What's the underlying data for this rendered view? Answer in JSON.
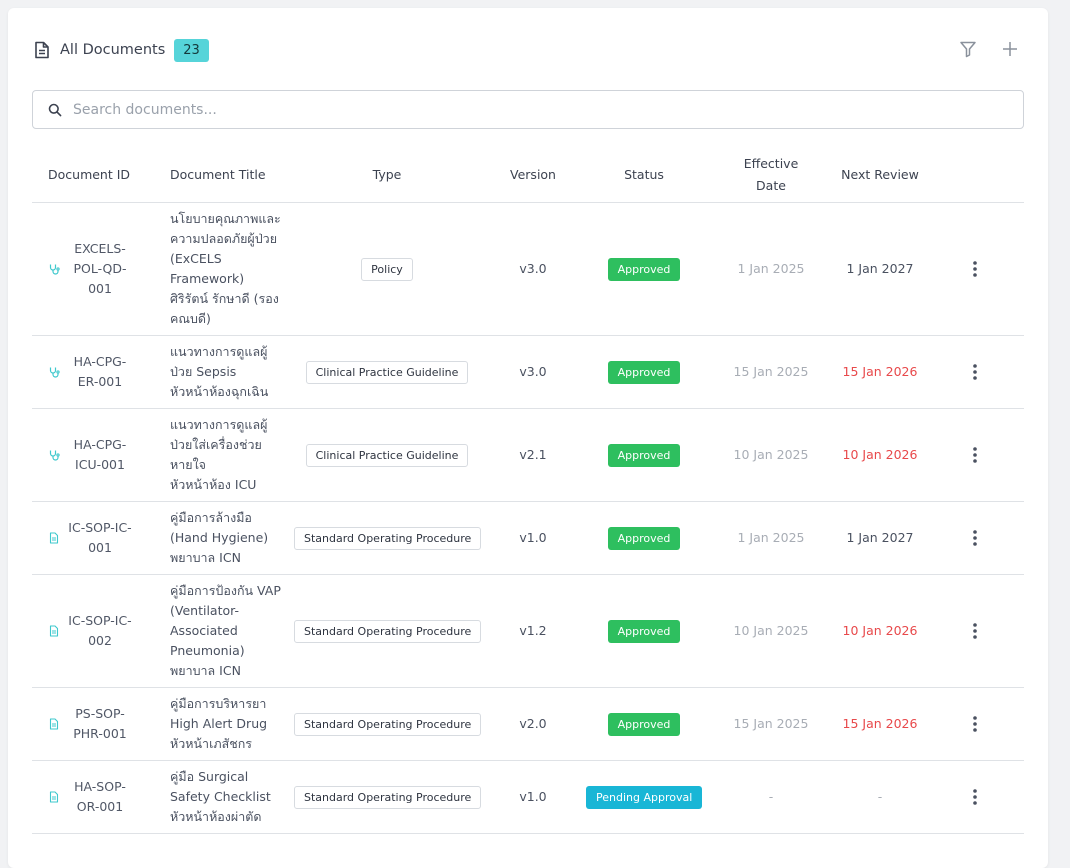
{
  "header": {
    "title": "All Documents",
    "count": "23"
  },
  "toolbar": {
    "filter_icon": "filter-icon",
    "add_icon": "plus-icon"
  },
  "search": {
    "placeholder": "Search documents...",
    "value": ""
  },
  "table": {
    "columns": [
      "Document ID",
      "Document Title",
      "Type",
      "Version",
      "Status",
      "Effective Date",
      "Next Review"
    ],
    "rows": [
      {
        "icon": "stethoscope-icon",
        "id": "EXCELS-POL-QD-001",
        "title": "นโยบายคุณภาพและความปลอดภัยผู้ป่วย (ExCELS Framework)",
        "owner": "ศิริรัตน์ รักษาดี (รองคณบดี)",
        "type": "Policy",
        "version": "v3.0",
        "status": "Approved",
        "effective": "1 Jan 2025",
        "review": "1 Jan 2027",
        "review_overdue": false
      },
      {
        "icon": "stethoscope-icon",
        "id": "HA-CPG-ER-001",
        "title": "แนวทางการดูแลผู้ป่วย Sepsis",
        "owner": "หัวหน้าห้องฉุกเฉิน",
        "type": "Clinical Practice Guideline",
        "version": "v3.0",
        "status": "Approved",
        "effective": "15 Jan 2025",
        "review": "15 Jan 2026",
        "review_overdue": true
      },
      {
        "icon": "stethoscope-icon",
        "id": "HA-CPG-ICU-001",
        "title": "แนวทางการดูแลผู้ป่วยใส่เครื่องช่วยหายใจ",
        "owner": "หัวหน้าห้อง ICU",
        "type": "Clinical Practice Guideline",
        "version": "v2.1",
        "status": "Approved",
        "effective": "10 Jan 2025",
        "review": "10 Jan 2026",
        "review_overdue": true
      },
      {
        "icon": "file-icon",
        "id": "IC-SOP-IC-001",
        "title": "คู่มือการล้างมือ (Hand Hygiene)",
        "owner": "พยาบาล ICN",
        "type": "Standard Operating Procedure",
        "version": "v1.0",
        "status": "Approved",
        "effective": "1 Jan 2025",
        "review": "1 Jan 2027",
        "review_overdue": false
      },
      {
        "icon": "file-icon",
        "id": "IC-SOP-IC-002",
        "title": "คู่มือการป้องกัน VAP (Ventilator-Associated Pneumonia)",
        "owner": "พยาบาล ICN",
        "type": "Standard Operating Procedure",
        "version": "v1.2",
        "status": "Approved",
        "effective": "10 Jan 2025",
        "review": "10 Jan 2026",
        "review_overdue": true
      },
      {
        "icon": "file-icon",
        "id": "PS-SOP-PHR-001",
        "title": "คู่มือการบริหารยา High Alert Drug",
        "owner": "หัวหน้าเภสัชกร",
        "type": "Standard Operating Procedure",
        "version": "v2.0",
        "status": "Approved",
        "effective": "15 Jan 2025",
        "review": "15 Jan 2026",
        "review_overdue": true
      },
      {
        "icon": "file-icon",
        "id": "HA-SOP-OR-001",
        "title": "คู่มือ Surgical Safety Checklist",
        "owner": "หัวหน้าห้องผ่าตัด",
        "type": "Standard Operating Procedure",
        "version": "v1.0",
        "status": "Pending Approval",
        "effective": "-",
        "review": "-",
        "review_overdue": false
      }
    ]
  },
  "colors": {
    "accent_teal": "#56d4d9",
    "approved": "#2ebf5f",
    "pending": "#19b6d6",
    "overdue": "#e8494b"
  }
}
